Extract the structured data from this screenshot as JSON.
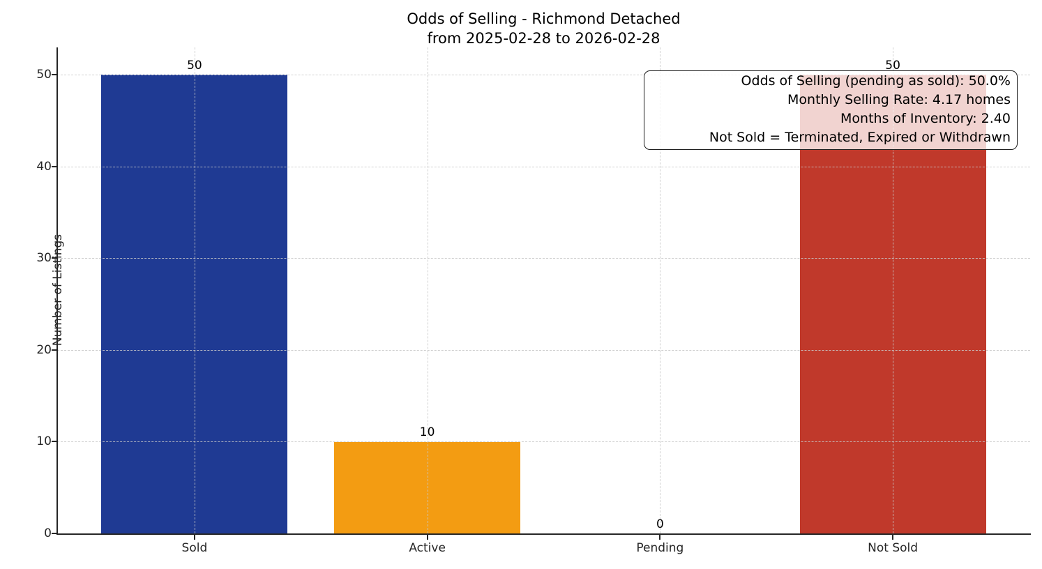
{
  "chart_data": {
    "type": "bar",
    "title": "Odds of Selling - Richmond Detached",
    "subtitle": "from 2025-02-28 to 2026-02-28",
    "categories": [
      "Sold",
      "Active",
      "Pending",
      "Not Sold"
    ],
    "values": [
      50,
      10,
      0,
      50
    ],
    "bar_value_labels": [
      "50",
      "10",
      "0",
      "50"
    ],
    "bar_colors": [
      "#1f3a93",
      "#f39c12",
      "#9e9e9e",
      "#c0392b"
    ],
    "ylabel": "Number of Listings",
    "yticks": [
      0,
      10,
      20,
      30,
      40,
      50
    ],
    "ylim": [
      0,
      53
    ],
    "xlim": [
      -0.59,
      3.59
    ],
    "bar_width_units": 0.8,
    "grid": "dashed, light gray, horizontal and vertical, drawn above bars",
    "legend": "none",
    "annotation": {
      "position": "top-right",
      "lines": [
        "Odds of Selling (pending as sold): 50.0%",
        "Monthly Selling Rate: 4.17 homes",
        "Months of Inventory: 2.40",
        "Not Sold = Terminated, Expired or Withdrawn"
      ]
    },
    "colors": {
      "background": "#ffffff",
      "spine": "#262626",
      "grid": "#c8c8c8",
      "text": "#000000"
    }
  }
}
